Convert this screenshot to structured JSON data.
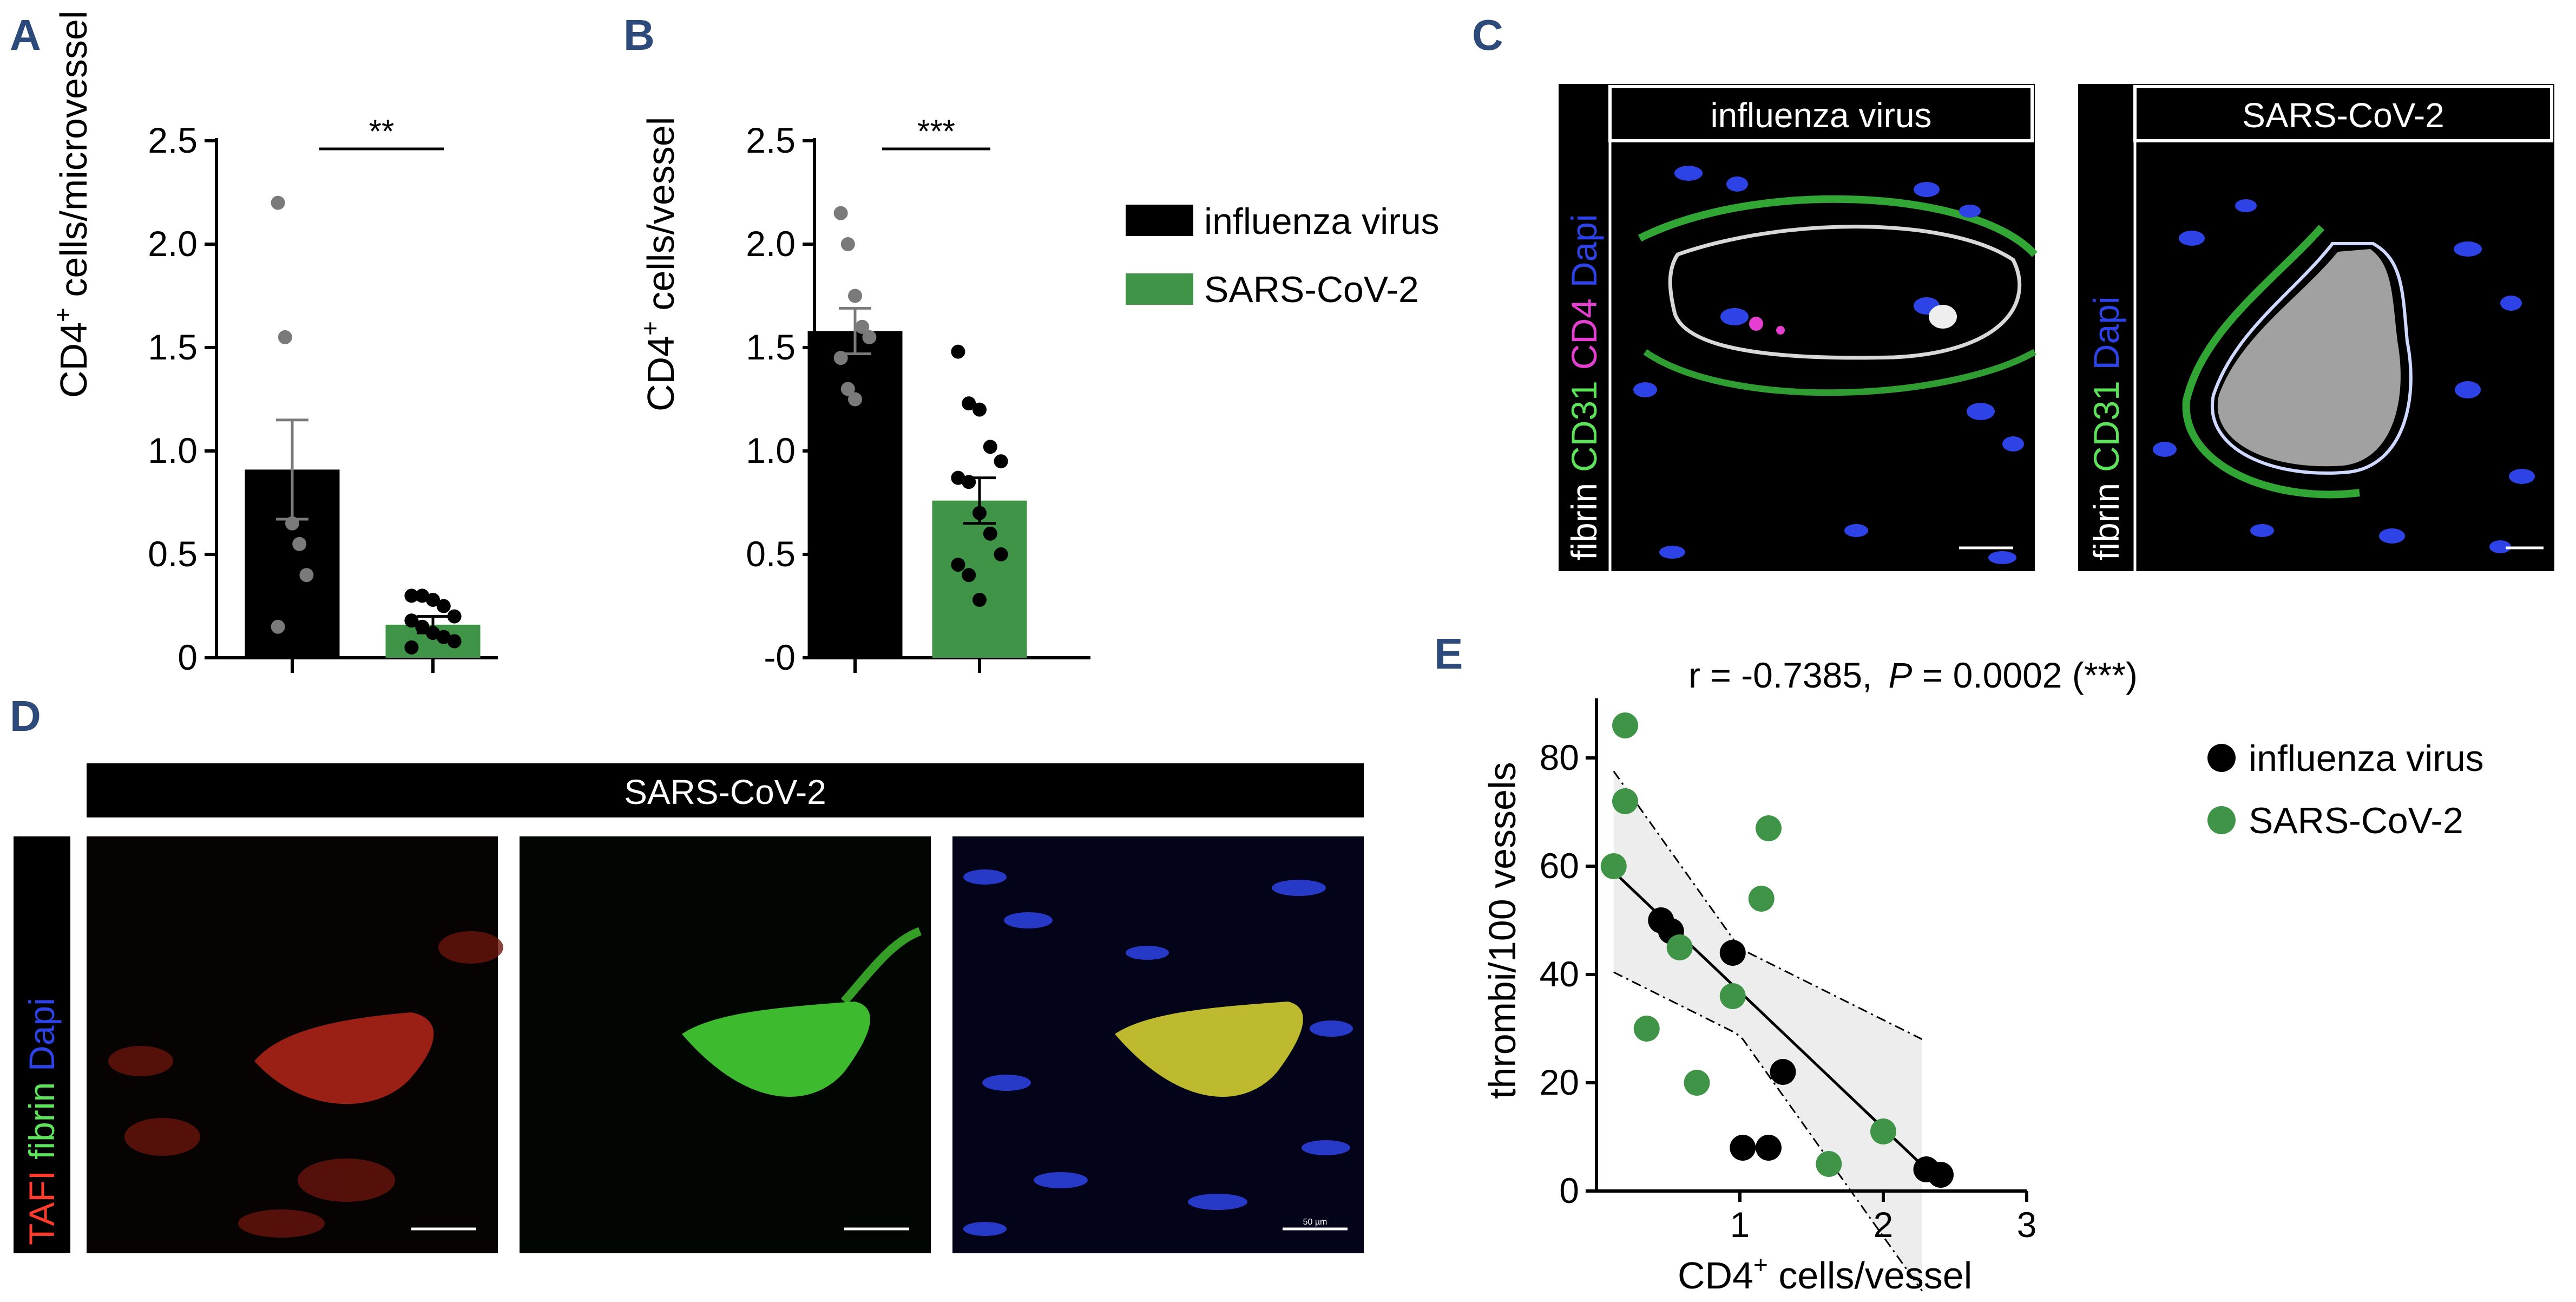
{
  "panel_labels": {
    "a": "A",
    "b": "B",
    "c": "C",
    "d": "D",
    "e": "E"
  },
  "colors": {
    "influenza": "#000000",
    "sars": "#3f9447",
    "grey_pt": "#7a7a7a",
    "blue": "#2e43e6",
    "green": "#5de35a",
    "magenta": "#e43fd0",
    "red": "#ff3c2c"
  },
  "panel_c": {
    "left_title": "influenza virus",
    "right_title": "SARS-CoV-2",
    "left_channels": [
      "fibrin",
      "CD31",
      "CD4",
      "Dapi"
    ],
    "right_channels": [
      "fibrin",
      "CD31",
      "Dapi"
    ]
  },
  "panel_d": {
    "title": "SARS-CoV-2",
    "channels": [
      "TAFI",
      "fibrin",
      "Dapi"
    ],
    "scale_text": "50 µm"
  },
  "chart_data": [
    {
      "type": "bar",
      "panel": "A",
      "ylabel_main": "CD4",
      "ylabel_sup": "+",
      "ylabel_rest": " cells/microvessel",
      "ylim": [
        0,
        2.5
      ],
      "yticks": [
        "0",
        "0.5",
        "1.0",
        "1.5",
        "2.0",
        "2.5"
      ],
      "significance": "**",
      "series": [
        {
          "name": "influenza virus",
          "mean": 0.91,
          "sem": 0.24,
          "points": [
            2.2,
            1.55,
            0.65,
            0.55,
            0.4,
            0.15
          ]
        },
        {
          "name": "SARS-CoV-2",
          "mean": 0.16,
          "sem": 0.04,
          "points": [
            0.3,
            0.3,
            0.28,
            0.25,
            0.2,
            0.18,
            0.15,
            0.12,
            0.1,
            0.08,
            0.05
          ]
        }
      ]
    },
    {
      "type": "bar",
      "panel": "B",
      "ylabel_main": "CD4",
      "ylabel_sup": "+",
      "ylabel_rest": " cells/vessel",
      "ylim": [
        0,
        2.5
      ],
      "yticks": [
        "-0",
        "0.5",
        "1.0",
        "1.5",
        "2.0",
        "2.5"
      ],
      "significance": "***",
      "series": [
        {
          "name": "influenza virus",
          "mean": 1.58,
          "sem": 0.11,
          "points": [
            2.15,
            2.0,
            1.75,
            1.6,
            1.55,
            1.45,
            1.3,
            1.25
          ]
        },
        {
          "name": "SARS-CoV-2",
          "mean": 0.76,
          "sem": 0.11,
          "points": [
            1.48,
            1.23,
            1.2,
            1.02,
            0.95,
            0.87,
            0.85,
            0.7,
            0.6,
            0.5,
            0.45,
            0.4,
            0.28
          ]
        }
      ],
      "legend": [
        {
          "label": "influenza virus",
          "color": "#000000"
        },
        {
          "label": "SARS-CoV-2",
          "color": "#3f9447"
        }
      ]
    },
    {
      "type": "scatter",
      "panel": "E",
      "annotation": "r = -0.7385,  P = 0.0002 (***)",
      "annotation_r": "r = -0.7385,",
      "annotation_p_italic": "P",
      "annotation_p_rest": " = 0.0002 (***)",
      "xlabel_main": "CD4",
      "xlabel_sup": "+",
      "xlabel_rest": " cells/vessel",
      "ylabel": "thrombi/100 vessels",
      "xlim": [
        0,
        3
      ],
      "ylim": [
        0,
        90
      ],
      "xticks": [
        "1",
        "2",
        "3"
      ],
      "yticks": [
        "0",
        "20",
        "40",
        "60",
        "80"
      ],
      "series": [
        {
          "name": "influenza virus",
          "color": "#000000",
          "x": [
            0.45,
            0.52,
            0.95,
            1.02,
            1.2,
            1.3,
            2.3,
            2.4
          ],
          "y": [
            50,
            48,
            44,
            8,
            8,
            22,
            4,
            3
          ]
        },
        {
          "name": "SARS-CoV-2",
          "color": "#3f9447",
          "x": [
            0.12,
            0.2,
            0.2,
            0.35,
            0.58,
            0.7,
            0.95,
            1.15,
            1.2,
            1.62,
            2.0
          ],
          "y": [
            60,
            86,
            72,
            30,
            45,
            20,
            36,
            54,
            67,
            5,
            11
          ]
        }
      ],
      "fit": {
        "slope": -25.2,
        "intercept": 62.0,
        "x_range": [
          0.12,
          2.3
        ]
      }
    }
  ]
}
